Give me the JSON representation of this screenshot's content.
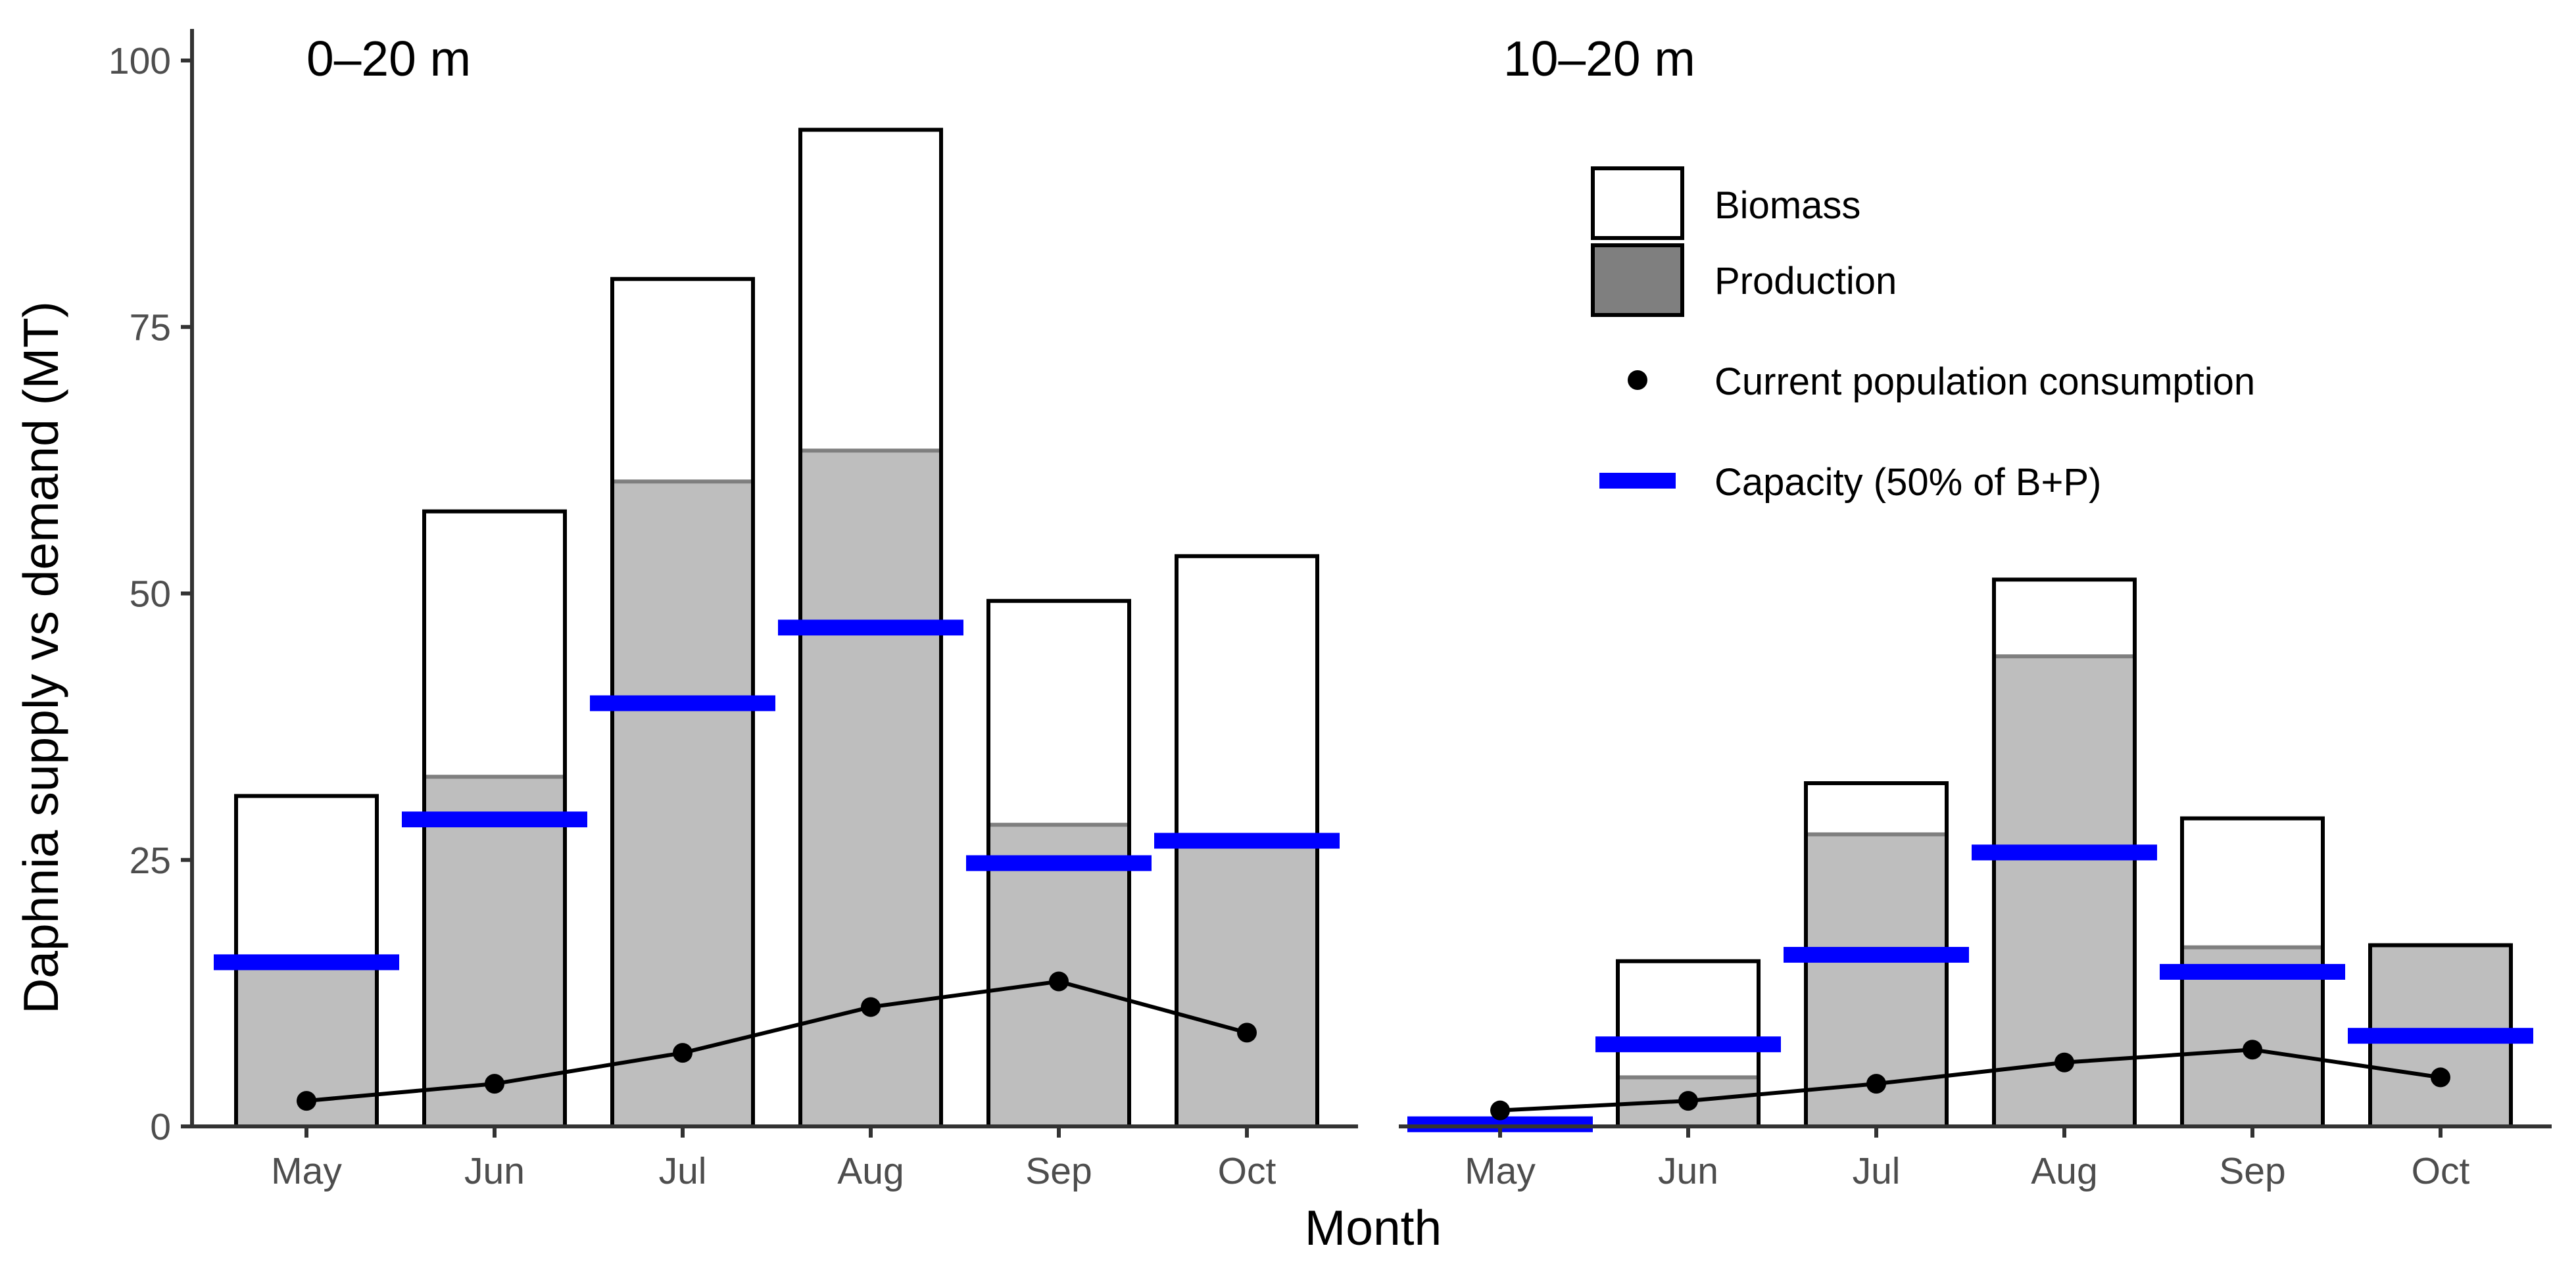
{
  "chart_data": {
    "type": "bar",
    "ylabel": "Daphnia supply vs demand (MT)",
    "xlabel": "Month",
    "ylim": [
      0,
      100
    ],
    "yticks": [
      0,
      25,
      50,
      75,
      100
    ],
    "categories": [
      "May",
      "Jun",
      "Jul",
      "Aug",
      "Sep",
      "Oct"
    ],
    "colors": {
      "biomass_fill": "#ffffff",
      "production_fill": "#bebebe",
      "production_legend_fill": "#7f7f7f",
      "production_top_line": "#7f7f7f",
      "bar_outline": "#000000",
      "capacity": "#0000ff",
      "consumption": "#000000"
    },
    "legend": {
      "placement": "top-right",
      "items": [
        {
          "key": "biomass",
          "label": "Biomass"
        },
        {
          "key": "production",
          "label": "Production"
        },
        {
          "key": "consumption",
          "label": "Current population consumption"
        },
        {
          "key": "capacity",
          "label": "Capacity (50% of B+P)"
        }
      ]
    },
    "panels": [
      {
        "title": "0–20 m",
        "series": [
          {
            "name": "Biomass",
            "values": [
              31,
              57.7,
              79.5,
              93.5,
              49.3,
              53.5
            ]
          },
          {
            "name": "Production",
            "values": [
              15.2,
              32.8,
              60.5,
              63.4,
              28.3,
              26.5
            ]
          },
          {
            "name": "Capacity (50% of B+P)",
            "values": [
              15.4,
              28.8,
              39.7,
              46.8,
              24.7,
              26.8
            ]
          },
          {
            "name": "Current population consumption",
            "values": [
              2.4,
              4.0,
              6.9,
              11.2,
              13.6,
              8.8
            ]
          }
        ]
      },
      {
        "title": "10–20 m",
        "series": [
          {
            "name": "Biomass",
            "values": [
              0.2,
              15.5,
              32.2,
              51.3,
              28.9,
              17.0
            ]
          },
          {
            "name": "Production",
            "values": [
              0.1,
              4.6,
              27.4,
              44.1,
              16.8,
              17.0
            ]
          },
          {
            "name": "Capacity (50% of B+P)",
            "values": [
              0.2,
              7.7,
              16.1,
              25.7,
              14.5,
              8.5
            ]
          },
          {
            "name": "Current population consumption",
            "values": [
              1.5,
              2.4,
              4.0,
              6.0,
              7.2,
              4.6
            ]
          }
        ]
      }
    ]
  }
}
